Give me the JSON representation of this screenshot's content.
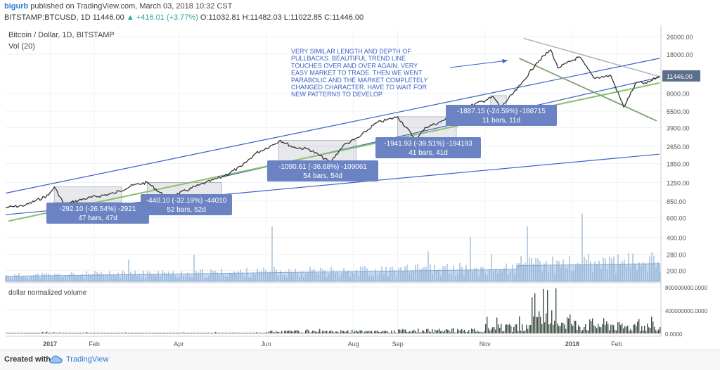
{
  "header": {
    "author": "bigurb",
    "published": "published on TradingView.com, March 03, 2018 10:32 CST",
    "symbol_line": "BITSTAMP:BTCUSD, 1D 11446.00",
    "change": "+416.01 (+3.77%)",
    "ohlc": "O:11032.81 H:11482.03 L:11022.85 C:11446.00"
  },
  "footer": {
    "created_with": "Created with",
    "brand": "TradingView"
  },
  "chart_data": [
    {
      "type": "line",
      "title": "Bitcoin / Dollar, 1D, BITSTAMP",
      "subtitle": "Vol (20)",
      "scale": "log",
      "grid": true,
      "last_price": "11446.00",
      "colors": {
        "price": "#333333",
        "channel": "#3a5fc8",
        "trend": "#8cbf6a",
        "last_price_bg": "#5b6f8a",
        "vol": "#bcd0e3",
        "vol_ma": "#7fa7d6",
        "label_bg": "#6b83c2"
      },
      "y_ticks": [
        "26000.00",
        "18000.00",
        "11446.00",
        "8000.00",
        "5500.00",
        "3900.00",
        "2650.00",
        "1850.00",
        "1250.00",
        "850.00",
        "600.00",
        "400.00",
        "280.00",
        "200.00"
      ],
      "x_ticks": [
        "2017",
        "Feb",
        "Apr",
        "Jun",
        "Aug",
        "Sep",
        "Nov",
        "2018",
        "Feb"
      ],
      "price_path": [
        [
          "2016-12-01",
          740
        ],
        [
          "2016-12-15",
          780
        ],
        [
          "2016-12-31",
          960
        ],
        [
          "2017-01-04",
          1140
        ],
        [
          "2017-01-11",
          790
        ],
        [
          "2017-01-25",
          890
        ],
        [
          "2017-02-15",
          1000
        ],
        [
          "2017-02-28",
          1180
        ],
        [
          "2017-03-10",
          1250
        ],
        [
          "2017-03-24",
          900
        ],
        [
          "2017-04-15",
          1180
        ],
        [
          "2017-05-01",
          1400
        ],
        [
          "2017-05-15",
          1750
        ],
        [
          "2017-05-25",
          2300
        ],
        [
          "2017-06-05",
          2700
        ],
        [
          "2017-06-11",
          3000
        ],
        [
          "2017-06-20",
          2600
        ],
        [
          "2017-07-01",
          2500
        ],
        [
          "2017-07-16",
          1900
        ],
        [
          "2017-07-25",
          2700
        ],
        [
          "2017-08-05",
          3200
        ],
        [
          "2017-08-17",
          4300
        ],
        [
          "2017-09-01",
          4900
        ],
        [
          "2017-09-14",
          3000
        ],
        [
          "2017-09-20",
          3900
        ],
        [
          "2017-10-01",
          4400
        ],
        [
          "2017-10-20",
          6000
        ],
        [
          "2017-11-07",
          7400
        ],
        [
          "2017-11-12",
          5900
        ],
        [
          "2017-11-26",
          9500
        ],
        [
          "2017-12-07",
          15000
        ],
        [
          "2017-12-17",
          19700
        ],
        [
          "2017-12-22",
          13500
        ],
        [
          "2018-01-06",
          17000
        ],
        [
          "2018-01-16",
          11000
        ],
        [
          "2018-01-28",
          11500
        ],
        [
          "2018-02-06",
          6000
        ],
        [
          "2018-02-15",
          10000
        ],
        [
          "2018-02-22",
          9800
        ],
        [
          "2018-03-03",
          11446
        ]
      ],
      "trend_lines": [
        {
          "name": "channel-upper",
          "from": [
            "2016-12-01",
            1000
          ],
          "to": [
            "2018-03-03",
            16500
          ]
        },
        {
          "name": "channel-lower",
          "from": [
            "2016-12-01",
            640
          ],
          "to": [
            "2018-03-03",
            2250
          ]
        },
        {
          "name": "channel-mid",
          "from": [
            "2017-05-01",
            1400
          ],
          "to": [
            "2018-03-03",
            11100
          ]
        },
        {
          "name": "green-trend",
          "from": [
            "2016-12-03",
            560
          ],
          "to": [
            "2018-03-03",
            9900
          ]
        },
        {
          "name": "grey-resistance",
          "from": [
            "2017-11-28",
            25000
          ],
          "to": [
            "2018-03-03",
            11300
          ]
        },
        {
          "name": "green-down",
          "from": [
            "2017-11-25",
            16500
          ],
          "to": [
            "2018-03-01",
            4500
          ]
        }
      ],
      "pullbacks": [
        {
          "from": [
            "2017-01-04",
            1140
          ],
          "to": [
            "2017-02-20",
            830
          ],
          "text1": "-292.10 (-26.54%) -2921",
          "text2": "47 bars, 47d"
        },
        {
          "from": [
            "2017-03-10",
            1250
          ],
          "to": [
            "2017-05-01",
            880
          ],
          "text1": "-440.10 (-32.19%) -44010",
          "text2": "52 bars, 52d"
        },
        {
          "from": [
            "2017-06-10",
            3000
          ],
          "to": [
            "2017-08-03",
            1900
          ],
          "text1": "-1090.61 (-36.68%) -109061",
          "text2": "54 bars, 54d"
        },
        {
          "from": [
            "2017-09-01",
            4900
          ],
          "to": [
            "2017-10-12",
            2950
          ],
          "text1": "-1941.93 (-39.51%) -194193",
          "text2": "41 bars, 41d"
        },
        {
          "from": [
            "2017-11-05",
            7600
          ],
          "to": [
            "2017-11-16",
            5700
          ],
          "text1": "-1887.15 (-24.59%) -188715",
          "text2": "11 bars, 11d"
        }
      ],
      "annotation": [
        "VERY SIMILAR LENGTH AND DEPTH OF",
        "PULLBACKS.  BEAUTIFUL TREND LINE",
        "TOUCHES OVER AND OVER AGAIN.  VERY",
        "EASY MARKET TO TRADE.  THEN WE WENT",
        "PARABOLIC AND THE MARKET COMPLETELY",
        "CHANGED CHARACTER.  HAVE TO WAIT FOR",
        "NEW PATTERNS TO DEVELOP."
      ]
    },
    {
      "type": "bar",
      "title": "dollar normalized volume",
      "y_ticks": [
        "800000000.0000",
        "400000000.0000",
        "0.0000"
      ],
      "ylim": [
        0,
        800000000
      ],
      "series": [
        {
          "x": "2016-12",
          "values": [
            6000000,
            30000000
          ]
        },
        {
          "x": "2017-06",
          "values": [
            40000000,
            80000000
          ]
        },
        {
          "x": "2017-09",
          "values": [
            60000000,
            120000000
          ]
        },
        {
          "x": "2017-11",
          "values": [
            120000000,
            300000000
          ]
        },
        {
          "x": "2017-12",
          "values": [
            300000000,
            780000000
          ]
        },
        {
          "x": "2018-01",
          "values": [
            200000000,
            420000000
          ]
        },
        {
          "x": "2018-02",
          "values": [
            150000000,
            300000000
          ]
        }
      ]
    }
  ]
}
